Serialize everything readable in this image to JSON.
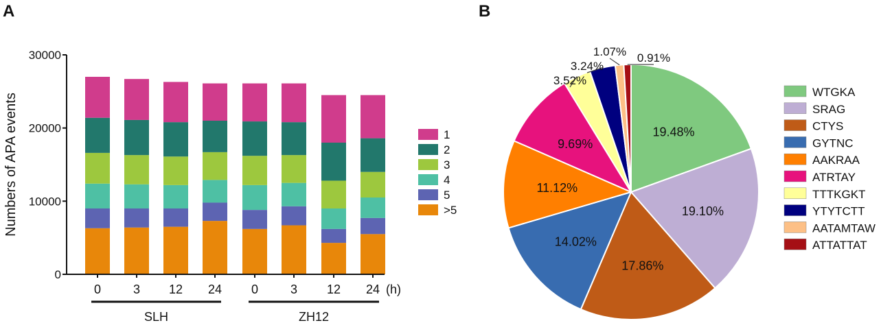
{
  "panels": {
    "a_label": "A",
    "b_label": "B"
  },
  "chart_data": [
    {
      "type": "bar",
      "stacked": true,
      "title": "",
      "xlabel": "",
      "ylabel": "Numbers of APA events",
      "ylim": [
        0,
        30000
      ],
      "yticks": [
        0,
        10000,
        20000,
        30000
      ],
      "x_unit": "(h)",
      "categories": [
        "0",
        "3",
        "12",
        "24",
        "0",
        "3",
        "12",
        "24"
      ],
      "groups": [
        {
          "label": "SLH",
          "categories": [
            0,
            1,
            2,
            3
          ]
        },
        {
          "label": "ZH12",
          "categories": [
            4,
            5,
            6,
            7
          ]
        }
      ],
      "legend_position": "right",
      "series": [
        {
          "name": ">5",
          "color": "#E8870A",
          "values": [
            6300,
            6400,
            6500,
            7300,
            6200,
            6700,
            4300,
            5500
          ]
        },
        {
          "name": "5",
          "color": "#5D64B2",
          "values": [
            2700,
            2600,
            2500,
            2500,
            2600,
            2600,
            1900,
            2200
          ]
        },
        {
          "name": "4",
          "color": "#4EC0A4",
          "values": [
            3400,
            3300,
            3200,
            3100,
            3400,
            3200,
            2800,
            2800
          ]
        },
        {
          "name": "3",
          "color": "#9DC83E",
          "values": [
            4200,
            4000,
            3900,
            3800,
            4000,
            3800,
            3800,
            3500
          ]
        },
        {
          "name": "2",
          "color": "#22786C",
          "values": [
            4800,
            4800,
            4700,
            4300,
            4700,
            4500,
            5200,
            4600
          ]
        },
        {
          "name": "1",
          "color": "#D03C8C",
          "values": [
            5600,
            5600,
            5500,
            5100,
            5200,
            5300,
            6500,
            5900
          ]
        }
      ]
    },
    {
      "type": "pie",
      "title": "",
      "legend_position": "right",
      "slices": [
        {
          "name": "WTGKA",
          "value": 19.48,
          "label": "19.48%",
          "color": "#7FC97F"
        },
        {
          "name": "SRAG",
          "value": 19.1,
          "label": "19.10%",
          "color": "#BEAED4"
        },
        {
          "name": "CTYS",
          "value": 17.86,
          "label": "17.86%",
          "color": "#BF5B17"
        },
        {
          "name": "GYTNC",
          "value": 14.02,
          "label": "14.02%",
          "color": "#386CB0"
        },
        {
          "name": "AAKRAA",
          "value": 11.12,
          "label": "11.12%",
          "color": "#FF7F00"
        },
        {
          "name": "ATRTAY",
          "value": 9.69,
          "label": "9.69%",
          "color": "#E7127D"
        },
        {
          "name": "TTTKGKT",
          "value": 3.52,
          "label": "3.52%",
          "color": "#FFFF99"
        },
        {
          "name": "YTYTCTT",
          "value": 3.24,
          "label": "3.24%",
          "color": "#00007F"
        },
        {
          "name": "AATAMTAW",
          "value": 1.07,
          "label": "1.07%",
          "color": "#FDC086"
        },
        {
          "name": "ATTATTAT",
          "value": 0.91,
          "label": "0.91%",
          "color": "#A50F15"
        }
      ]
    }
  ]
}
